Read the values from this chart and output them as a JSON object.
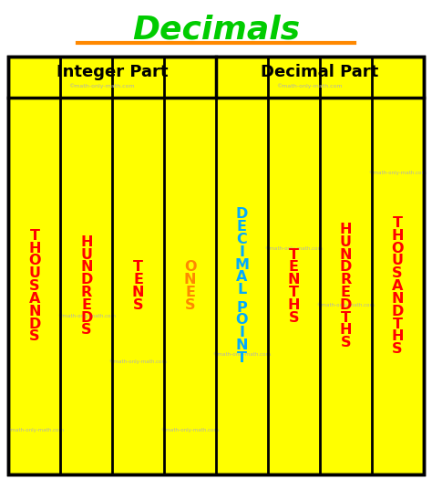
{
  "title": "Decimals",
  "title_color": "#00cc00",
  "title_underline_color": "#ff8800",
  "bg_color": "#ffff00",
  "border_color": "#000000",
  "header1": "Integer Part",
  "header2": "Decimal Part",
  "header_text_color": "#000000",
  "watermark_color": "#b0b0b0",
  "columns": [
    {
      "label": "THOUSANDS",
      "color": "#ff0000"
    },
    {
      "label": "HUNDREDS",
      "color": "#ff0000"
    },
    {
      "label": "TENS",
      "color": "#ff0000"
    },
    {
      "label": "ONES",
      "color": "#ff8800"
    },
    {
      "label": "DECIMAL\nPOINT",
      "color": "#00aaff"
    },
    {
      "label": "TENTHS",
      "color": "#ff0000"
    },
    {
      "label": "HUNDREDTHS",
      "color": "#ff0000"
    },
    {
      "label": "THOUSANDTHS",
      "color": "#ff0000"
    }
  ],
  "n_cols": 8,
  "integer_cols": 4,
  "figsize": [
    4.74,
    5.25
  ],
  "dpi": 100
}
